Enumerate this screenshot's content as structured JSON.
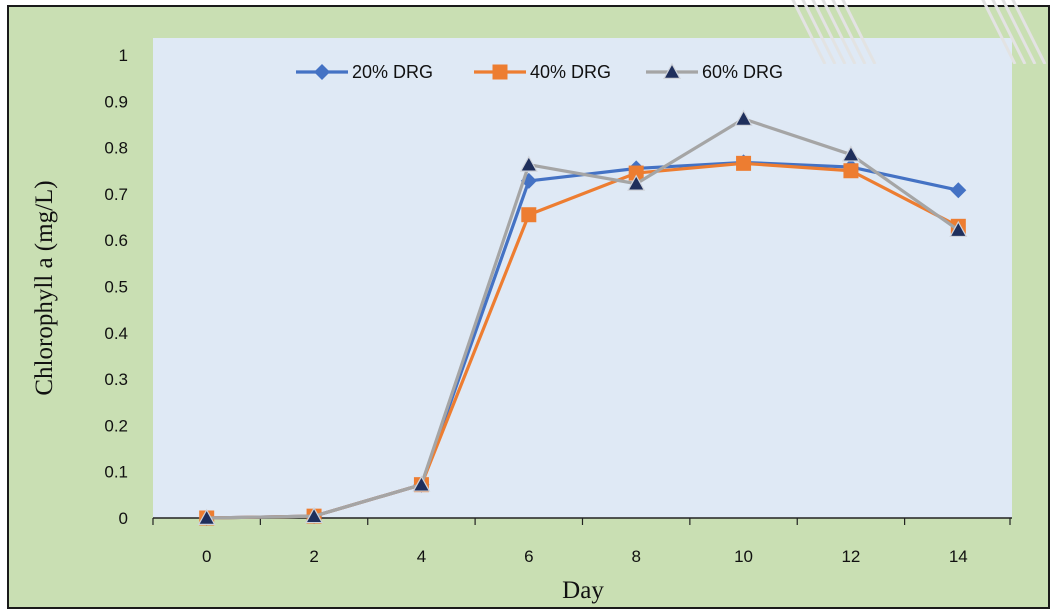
{
  "chart_data": {
    "type": "line",
    "xlabel": "Day",
    "ylabel": "Chlorophyll a (mg/L)",
    "x": [
      0,
      2,
      4,
      6,
      8,
      10,
      12,
      14
    ],
    "xlim": [
      -1,
      15
    ],
    "ylim": [
      0,
      1
    ],
    "yticks": [
      "0",
      "0.1",
      "0.2",
      "0.3",
      "0.4",
      "0.5",
      "0.6",
      "0.7",
      "0.8",
      "0.9",
      "1"
    ],
    "xticks": [
      "0",
      "2",
      "4",
      "6",
      "8",
      "10",
      "12",
      "14"
    ],
    "grid": false,
    "legend_position": "top",
    "series": [
      {
        "name": "20% DRG",
        "marker": "diamond",
        "color": "#4472c4",
        "values": [
          0.0,
          0.004,
          0.072,
          0.728,
          0.755,
          0.768,
          0.758,
          0.708
        ]
      },
      {
        "name": "40% DRG",
        "marker": "square",
        "color": "#ed7d31",
        "values": [
          0.0,
          0.004,
          0.072,
          0.655,
          0.745,
          0.766,
          0.75,
          0.63
        ]
      },
      {
        "name": "60% DRG",
        "marker": "triangle",
        "color": "#a5a5a5",
        "marker_fill": "#1f2f5c",
        "values": [
          0.0,
          0.004,
          0.072,
          0.763,
          0.722,
          0.862,
          0.785,
          0.622
        ]
      }
    ],
    "plot_background": "#dfe9f5",
    "chart_background": "#c9dfb3"
  }
}
